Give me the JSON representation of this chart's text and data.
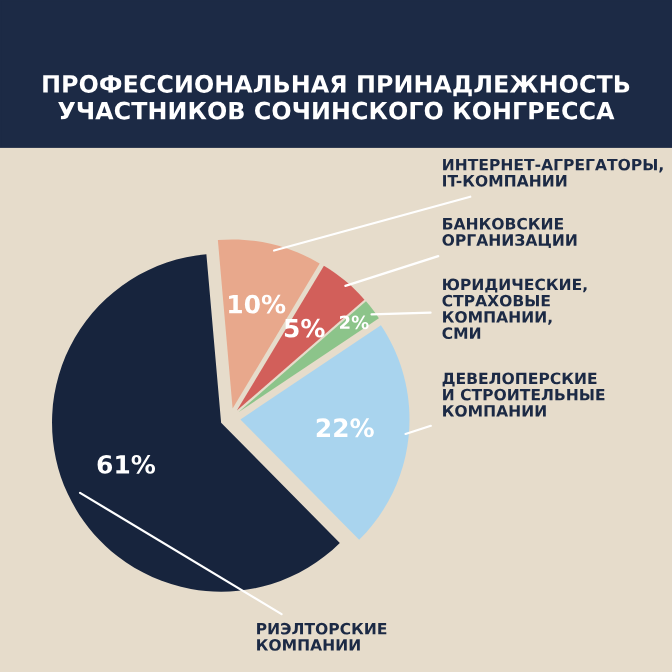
{
  "chart_data": {
    "type": "pie",
    "title": "ПРОФЕССИОНАЛЬНАЯ ПРИНАДЛЕЖНОСТЬ\nУЧАСТНИКОВ СОЧИНСКОГО КОНГРЕССА",
    "categories": [
      "ИНТЕРНЕТ-АГРЕГАТОРЫ,\nIT-КОМПАНИИ",
      "БАНКОВСКИЕ\nОРГАНИЗАЦИИ",
      "ЮРИДИЧЕСКИЕ,\nСТРАХОВЫЕ\nКОМПАНИИ,\nСМИ",
      "ДЕВЕЛОПЕРСКИЕ\nИ СТРОИТЕЛЬНЫЕ\nКОМПАНИИ",
      "РИЭЛТОРСКИЕ\nКОМПАНИИ"
    ],
    "values": [
      10,
      5,
      2,
      22,
      61
    ],
    "colors": [
      "#e8a88c",
      "#d25f5a",
      "#8cc48a",
      "#a9d4ee",
      "#17243d"
    ],
    "value_labels": [
      "10%",
      "5%",
      "2%",
      "22%",
      "61%"
    ],
    "legend": false
  }
}
